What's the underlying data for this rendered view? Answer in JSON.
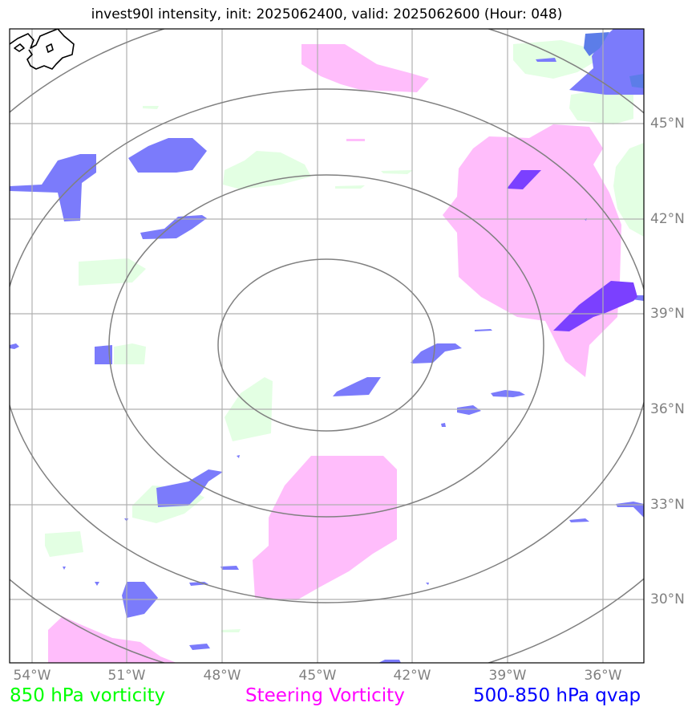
{
  "title": "invest90l intensity, init: 2025062400, valid: 2025062600 (Hour: 048)",
  "longitude_labels": [
    "54°W",
    "51°W",
    "48°W",
    "45°W",
    "42°W",
    "39°W",
    "36°W"
  ],
  "latitude_labels": [
    "45°N",
    "42°N",
    "39°N",
    "36°N",
    "33°N",
    "30°N"
  ],
  "legend": {
    "vorticity_850": {
      "label": "850 hPa vorticity",
      "color": "#00ff00"
    },
    "steering": {
      "label": "Steering Vorticity",
      "color": "#ff00ff"
    },
    "qvap": {
      "label": "500-850 hPa qvap",
      "color": "#0000ff"
    }
  },
  "fill_colors": {
    "vorticity_850": "#e3ffe3",
    "steering": "#ffbdfb",
    "qvap": "#7b7bfb",
    "qvap_strong": "#7b40ff"
  },
  "grid_color": "#b0b0b0",
  "range_ring_color": "#808080",
  "coastline_color": "#000000"
}
